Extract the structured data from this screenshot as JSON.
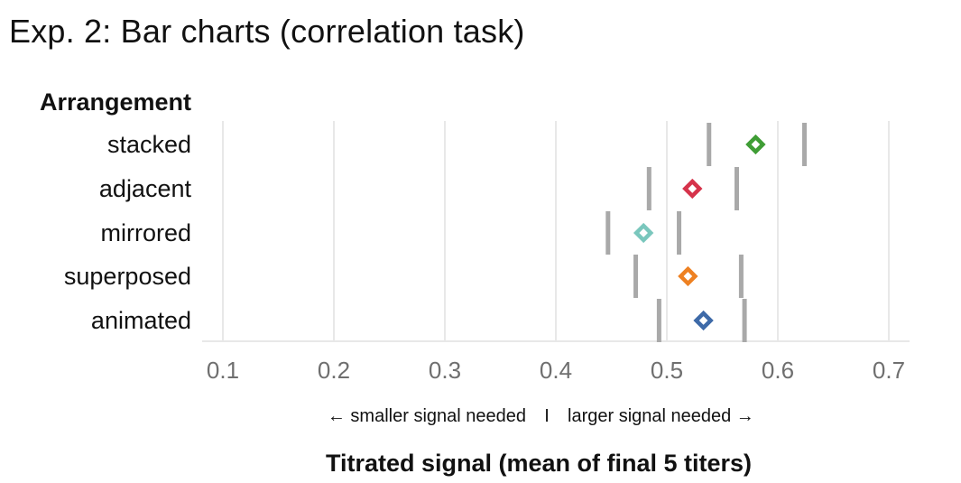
{
  "chart_data": {
    "type": "scatter",
    "title": "Exp. 2: Bar charts (correlation task)",
    "group_label": "Arrangement",
    "categories": [
      "stacked",
      "adjacent",
      "mirrored",
      "superposed",
      "animated"
    ],
    "means": [
      0.58,
      0.523,
      0.479,
      0.519,
      0.533
    ],
    "ci_low": [
      0.538,
      0.484,
      0.447,
      0.472,
      0.493
    ],
    "ci_high": [
      0.624,
      0.563,
      0.511,
      0.567,
      0.57
    ],
    "colors": [
      "#3f9d35",
      "#d6334b",
      "#7ac7bd",
      "#ee8122",
      "#3e6aa8"
    ],
    "xlim": [
      0.1,
      0.7
    ],
    "xticks": [
      "0.1",
      "0.2",
      "0.3",
      "0.4",
      "0.5",
      "0.6",
      "0.7"
    ],
    "direction_left": "←  smaller signal needed",
    "direction_sep": "I",
    "direction_right": "larger signal needed  →",
    "xlabel": "Titrated signal (mean of final 5 titers)",
    "grid": true,
    "ci_color": "#a9a9a9",
    "grid_color": "#e8e8e8"
  }
}
